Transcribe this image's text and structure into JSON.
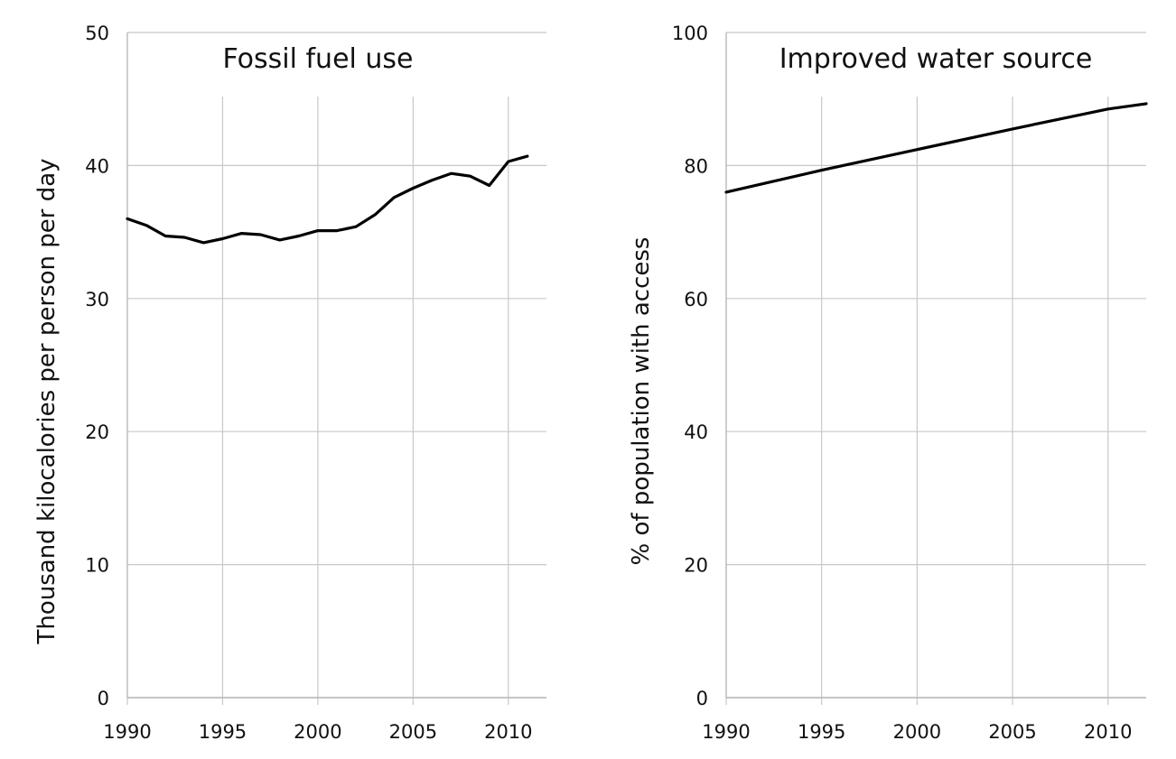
{
  "chart_data": [
    {
      "type": "line",
      "title": "Fossil fuel use",
      "xlabel": "",
      "ylabel": "Thousand kilocalories per person per day",
      "xlim": [
        1990,
        2012
      ],
      "ylim": [
        0,
        50
      ],
      "x_ticks": [
        1990,
        1995,
        2000,
        2005,
        2010
      ],
      "y_ticks": [
        0,
        10,
        20,
        30,
        40,
        50
      ],
      "grid": true,
      "series": [
        {
          "color": "#000000",
          "x": [
            1990,
            1991,
            1992,
            1993,
            1994,
            1995,
            1996,
            1997,
            1998,
            1999,
            2000,
            2001,
            2002,
            2003,
            2004,
            2005,
            2006,
            2007,
            2008,
            2009,
            2010,
            2011
          ],
          "values": [
            36.0,
            35.5,
            34.7,
            34.6,
            34.2,
            34.5,
            34.9,
            34.8,
            34.4,
            34.7,
            35.1,
            35.1,
            35.4,
            36.3,
            37.6,
            38.3,
            38.9,
            39.4,
            39.2,
            38.5,
            40.3,
            40.7
          ]
        }
      ]
    },
    {
      "type": "line",
      "title": "Improved water source",
      "xlabel": "",
      "ylabel": "% of population with access",
      "xlim": [
        1990,
        2012
      ],
      "ylim": [
        0,
        100
      ],
      "x_ticks": [
        1990,
        1995,
        2000,
        2005,
        2010
      ],
      "y_ticks": [
        0,
        20,
        40,
        60,
        80,
        100
      ],
      "grid": true,
      "series": [
        {
          "color": "#000000",
          "x": [
            1990,
            1995,
            2000,
            2005,
            2010,
            2012
          ],
          "values": [
            76,
            79.3,
            82.4,
            85.5,
            88.5,
            89.3
          ]
        }
      ]
    }
  ]
}
